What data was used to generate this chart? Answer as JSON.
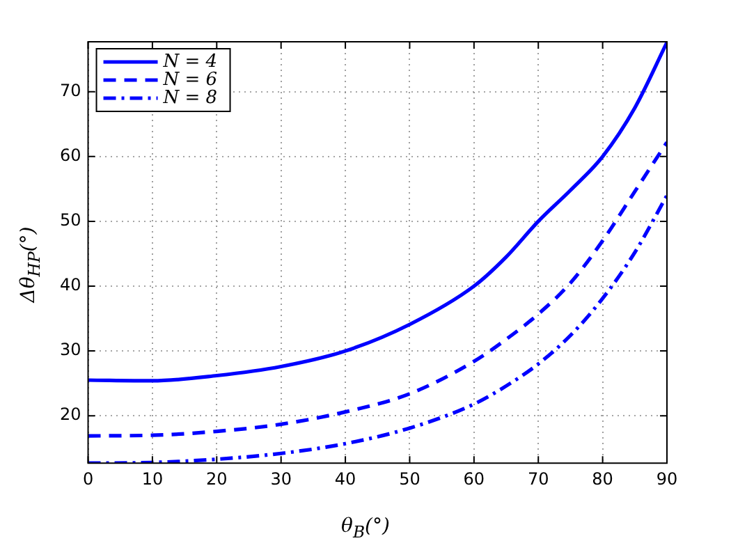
{
  "chart_data": {
    "type": "line",
    "xlabel": "θ$_{B}$(°)",
    "ylabel": "Δθ$_{HP}$(°)",
    "x": [
      0,
      10,
      20,
      30,
      40,
      50,
      60,
      65,
      70,
      75,
      80,
      85,
      90
    ],
    "series": [
      {
        "name": "N = 4",
        "color": "#0000ff",
        "line_style": "solid",
        "values": [
          25.5,
          25.4,
          26.2,
          27.6,
          30.0,
          34.1,
          40.0,
          44.5,
          50.0,
          54.8,
          60.0,
          67.5,
          77.6
        ]
      },
      {
        "name": "N = 6",
        "color": "#0000ff",
        "line_style": "dashed",
        "values": [
          16.9,
          17.0,
          17.6,
          18.7,
          20.6,
          23.4,
          28.4,
          31.8,
          35.7,
          40.5,
          47.0,
          54.6,
          62.2
        ]
      },
      {
        "name": "N = 8",
        "color": "#0000ff",
        "line_style": "dashdot",
        "values": [
          12.7,
          12.8,
          13.3,
          14.2,
          15.7,
          18.1,
          21.8,
          24.6,
          28.0,
          32.4,
          38.1,
          45.2,
          54.0
        ]
      }
    ],
    "xlim": [
      0,
      90
    ],
    "xticks": [
      0,
      10,
      20,
      30,
      40,
      50,
      60,
      70,
      80,
      90
    ],
    "ylim": [
      12.7,
      77.7
    ],
    "yticks": [
      20,
      30,
      40,
      50,
      60,
      70
    ],
    "grid": true,
    "legend": "top left",
    "marker": "none"
  }
}
